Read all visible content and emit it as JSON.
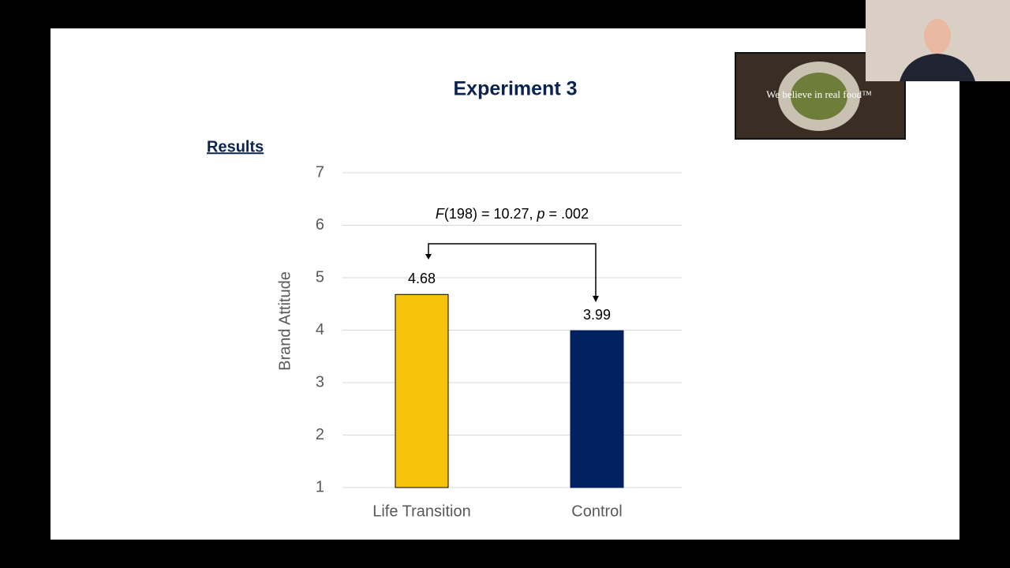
{
  "slide": {
    "title": "Experiment 3",
    "heading": "Results",
    "video_caption": "We believe in real food™"
  },
  "chart_data": {
    "type": "bar",
    "y_label": "Brand Attitude",
    "categories": [
      "Life Transition",
      "Control"
    ],
    "values": [
      4.68,
      3.99
    ],
    "colors": [
      "#f5c30c",
      "#002060"
    ],
    "ylim": [
      1,
      7
    ],
    "yticks": [
      1,
      2,
      3,
      4,
      5,
      6,
      7
    ],
    "grid": true,
    "annotation": [
      "F",
      "(198) = 10.27, ",
      "p",
      " = .002"
    ]
  }
}
